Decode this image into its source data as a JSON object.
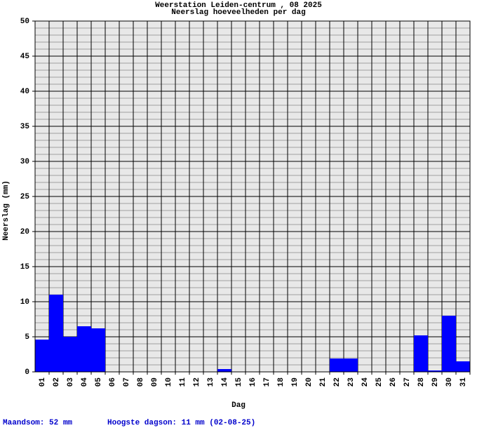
{
  "chart_data": {
    "type": "bar",
    "title": "Weerstation Leiden-centrum , 08 2025",
    "subtitle": "Neerslag hoeveelheden per dag",
    "x_label": "Dag",
    "y_label": "Neerslag (mm)",
    "categories": [
      "01",
      "02",
      "03",
      "04",
      "05",
      "06",
      "07",
      "08",
      "09",
      "10",
      "11",
      "12",
      "13",
      "14",
      "15",
      "16",
      "17",
      "18",
      "19",
      "20",
      "21",
      "22",
      "23",
      "24",
      "25",
      "26",
      "27",
      "28",
      "29",
      "30",
      "31"
    ],
    "values": [
      4.6,
      11,
      5,
      6.5,
      6.2,
      0,
      0,
      0,
      0,
      0,
      0,
      0,
      0,
      0.4,
      0,
      0,
      0,
      0,
      0,
      0,
      0,
      1.9,
      1.9,
      0,
      0,
      0,
      0,
      5.2,
      0.2,
      8,
      1.5
    ],
    "color": "#0000ff",
    "ylim": [
      0,
      50
    ],
    "yticks": [
      0,
      5,
      10,
      15,
      20,
      25,
      30,
      35,
      40,
      45,
      50
    ],
    "grid": true,
    "minor_grid": true,
    "footer": [
      "Maandsom: 52 mm",
      "Hoogste dagson: 11 mm (02-08-25)"
    ]
  }
}
